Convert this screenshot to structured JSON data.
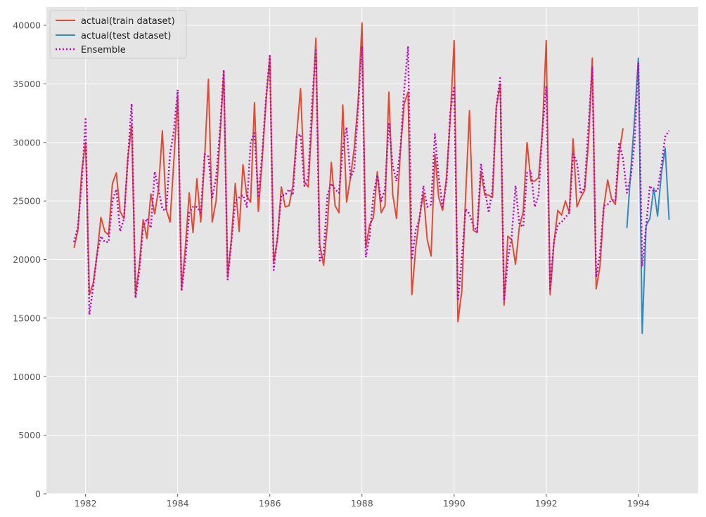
{
  "chart_data": {
    "type": "line",
    "title": "",
    "xlabel": "",
    "ylabel": "",
    "xlim": [
      1981.15,
      1995.3
    ],
    "ylim": [
      0,
      41560
    ],
    "grid": true,
    "legend_position": "top-left",
    "x_ticks": [
      1982,
      1984,
      1986,
      1988,
      1990,
      1992,
      1994
    ],
    "x_tick_labels": [
      "1982",
      "1984",
      "1986",
      "1988",
      "1990",
      "1992",
      "1994"
    ],
    "y_ticks": [
      0,
      5000,
      10000,
      15000,
      20000,
      25000,
      30000,
      35000,
      40000
    ],
    "y_tick_labels": [
      "0",
      "5000",
      "10000",
      "15000",
      "20000",
      "25000",
      "30000",
      "35000",
      "40000"
    ],
    "x_frequency": "monthly",
    "series": [
      {
        "name": "actual(train dataset)",
        "color": "#E24A33",
        "style": "solid",
        "x_start": 1981.75,
        "values": [
          21000,
          22500,
          27500,
          30000,
          17000,
          18000,
          20500,
          23600,
          22400,
          22100,
          26500,
          27400,
          24100,
          23500,
          28600,
          31500,
          17000,
          19500,
          23400,
          21800,
          25600,
          23900,
          26000,
          31000,
          24300,
          23200,
          28500,
          34000,
          17500,
          21000,
          25700,
          22300,
          26900,
          23200,
          28500,
          35400,
          23200,
          25000,
          30500,
          36000,
          18500,
          21800,
          26500,
          22400,
          28100,
          25400,
          24900,
          33400,
          24100,
          28500,
          33500,
          37300,
          19800,
          21800,
          26200,
          24500,
          24600,
          26300,
          30700,
          34600,
          26600,
          26200,
          32000,
          38900,
          21300,
          19500,
          23000,
          28300,
          24600,
          24000,
          33200,
          24900,
          27000,
          29500,
          33500,
          40200,
          21000,
          23000,
          23600,
          27500,
          24000,
          24600,
          34300,
          25600,
          23500,
          29300,
          33300,
          34300,
          17000,
          21000,
          23700,
          25700,
          21700,
          20300,
          29000,
          25300,
          24200,
          27000,
          32000,
          38700,
          14700,
          17300,
          25500,
          32700,
          22500,
          22300,
          27500,
          25500,
          25500,
          25300,
          33000,
          35000,
          16100,
          22000,
          21700,
          19600,
          22800,
          24100,
          30000,
          26700,
          26700,
          27000,
          31000,
          38700,
          17000,
          21400,
          24200,
          23800,
          25000,
          24000,
          30300,
          24500,
          25300,
          25900,
          30000,
          37200,
          17500,
          19400,
          24500,
          26800,
          25200,
          24700,
          29100,
          31200
        ]
      },
      {
        "name": "actual(test dataset)",
        "color": "#348ABD",
        "style": "solid",
        "x_start": 1993.75,
        "values": [
          22700,
          27500,
          32000,
          37200,
          13700,
          22900,
          23500,
          26100,
          23700,
          27400,
          29500,
          23400
        ]
      },
      {
        "name": "Ensemble",
        "color": "#BF00BF",
        "style": "dotted",
        "x_start": 1981.75,
        "values": [
          21500,
          22800,
          26500,
          32000,
          15300,
          17700,
          20500,
          22000,
          21500,
          21500,
          25000,
          26000,
          22400,
          23500,
          28500,
          33300,
          16700,
          19000,
          22800,
          23500,
          22700,
          27500,
          26000,
          24300,
          24200,
          29000,
          31000,
          34500,
          17300,
          20000,
          24000,
          24500,
          24500,
          24000,
          29000,
          28800,
          25300,
          27000,
          31000,
          36200,
          18300,
          21500,
          25000,
          25300,
          25500,
          24500,
          30000,
          30800,
          25300,
          29000,
          33800,
          37400,
          19100,
          22000,
          25500,
          25500,
          26000,
          25500,
          30500,
          30700,
          26300,
          27000,
          33500,
          38000,
          19900,
          20500,
          25500,
          26500,
          26000,
          25700,
          29500,
          31300,
          27000,
          27700,
          33000,
          38200,
          20200,
          22000,
          25500,
          27200,
          25000,
          26000,
          31700,
          28000,
          26700,
          29500,
          34500,
          38200,
          20000,
          22500,
          23500,
          26300,
          24500,
          24700,
          30700,
          27000,
          24500,
          26500,
          32500,
          34800,
          16500,
          20000,
          24300,
          23900,
          22900,
          22400,
          28200,
          26000,
          24000,
          26000,
          33000,
          35500,
          16500,
          20000,
          22000,
          26300,
          23000,
          22800,
          27400,
          27600,
          24500,
          25500,
          31000,
          34800,
          17500,
          21500,
          23000,
          23200,
          23600,
          24000,
          29000,
          28300,
          25600,
          26200,
          31500,
          36500,
          18500,
          20500,
          24600,
          24700,
          25100,
          25000,
          30000,
          28600,
          25700,
          27000,
          30000,
          36800,
          19400,
          22800,
          26300,
          25800,
          25900,
          28000,
          30500,
          31000
        ]
      }
    ]
  }
}
